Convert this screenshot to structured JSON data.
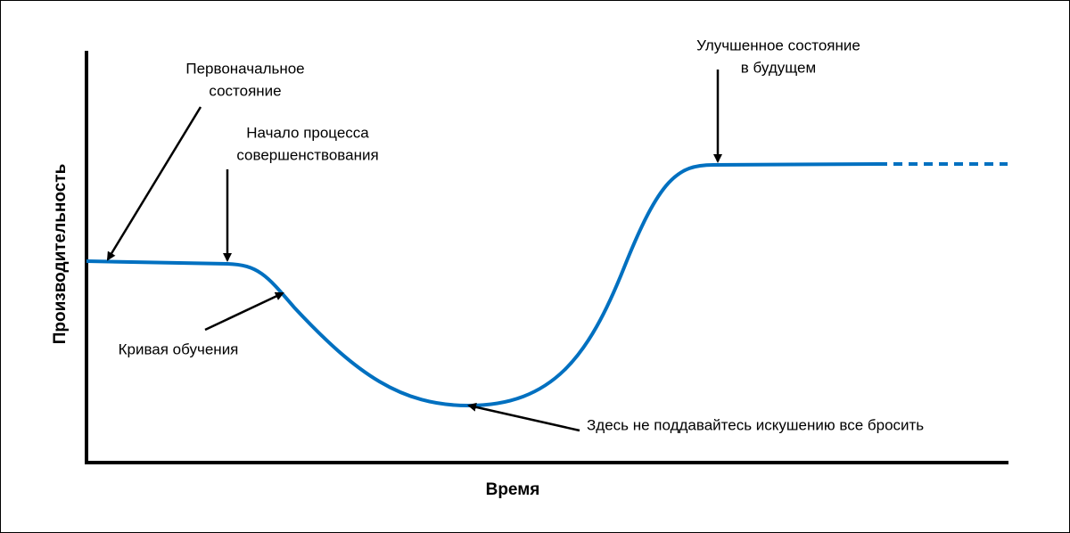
{
  "axes": {
    "x_label": "Время",
    "y_label": "Производительность"
  },
  "annotations": [
    {
      "lines": [
        "Первоначальное",
        "состояние"
      ]
    },
    {
      "lines": [
        "Начало процесса",
        "совершенствования"
      ]
    },
    {
      "lines": [
        "Кривая обучения"
      ]
    },
    {
      "lines": [
        "Улучшенное состояние",
        "в будущем"
      ]
    },
    {
      "lines": [
        "Здесь не поддавайтесь искушению все бросить"
      ]
    }
  ]
}
